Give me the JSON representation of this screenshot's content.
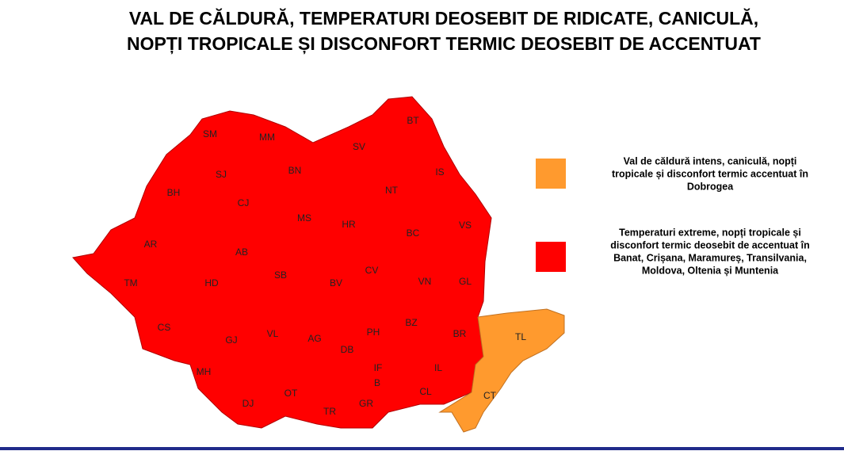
{
  "title": [
    "VAL DE CĂLDURĂ, TEMPERATURI DEOSEBIT DE RIDICATE, CANICULĂ,",
    "NOPȚI TROPICALE ȘI DISCONFORT TERMIC DEOSEBIT DE ACCENTUAT"
  ],
  "counties": [
    "SM",
    "MM",
    "BT",
    "SV",
    "BN",
    "SJ",
    "IS",
    "BH",
    "CJ",
    "NT",
    "MS",
    "HR",
    "VS",
    "AR",
    "AB",
    "BC",
    "SB",
    "CV",
    "TM",
    "HD",
    "BV",
    "VN",
    "GL",
    "CS",
    "GJ",
    "VL",
    "AG",
    "PH",
    "BZ",
    "BR",
    "TL",
    "DB",
    "IF",
    "IL",
    "MH",
    "B",
    "CL",
    "CT",
    "DJ",
    "OT",
    "TR",
    "GR"
  ],
  "legend": [
    {
      "lines": [
        "Val de căldură intens, caniculă, nopți",
        "tropicale și disconfort termic accentuat în",
        "Dobrogea"
      ]
    },
    {
      "lines": [
        "Temperaturi extreme, nopți tropicale  și",
        "disconfort termic deosebit de accentuat în",
        "Banat, Crișana, Maramureș, Transilvania,",
        "Moldova, Oltenia și Muntenia"
      ]
    }
  ]
}
